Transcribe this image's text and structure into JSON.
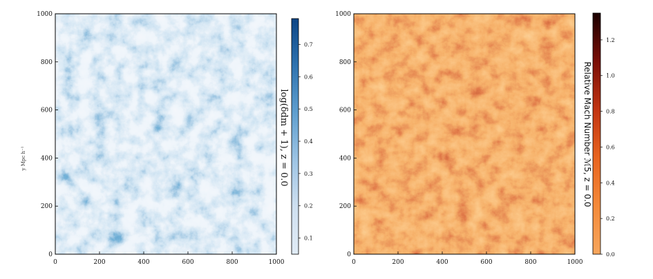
{
  "chart_data": [
    {
      "type": "heatmap",
      "ylabel": "y Mpc h⁻¹",
      "xlabel": "",
      "xlim": [
        0,
        1000
      ],
      "ylim": [
        0,
        1000
      ],
      "x_ticks": [
        0,
        200,
        400,
        600,
        800,
        1000
      ],
      "y_ticks": [
        0,
        200,
        400,
        600,
        800,
        1000
      ],
      "colormap": "Blues",
      "colors": [
        "#e1ecf6",
        "#cfe0f0",
        "#9dc4e4",
        "#5f9fcf",
        "#2f73b0",
        "#0d4686"
      ],
      "colorbar": {
        "label": "log(δdm + 1), z = 0.0",
        "min": 0.05,
        "max": 0.78,
        "ticks": [
          0.1,
          0.2,
          0.3,
          0.4,
          0.5,
          0.6,
          0.7
        ]
      }
    },
    {
      "type": "heatmap",
      "ylabel": "",
      "xlabel": "",
      "xlim": [
        0,
        1000
      ],
      "ylim": [
        0,
        1000
      ],
      "x_ticks": [
        0,
        200,
        400,
        600,
        800,
        1000
      ],
      "y_ticks": [
        0,
        200,
        400,
        600,
        800,
        1000
      ],
      "colormap": "gist_heat_r",
      "colors": [
        "#f7a65c",
        "#f48a3a",
        "#e8641f",
        "#c23412",
        "#7a0e06",
        "#1a0000"
      ],
      "colorbar": {
        "label": "Relative Mach Number ℳ5, z = 0.0",
        "min": 0.0,
        "max": 1.35,
        "ticks": [
          0.0,
          0.2,
          0.4,
          0.6,
          0.8,
          1.0,
          1.2
        ]
      }
    }
  ]
}
